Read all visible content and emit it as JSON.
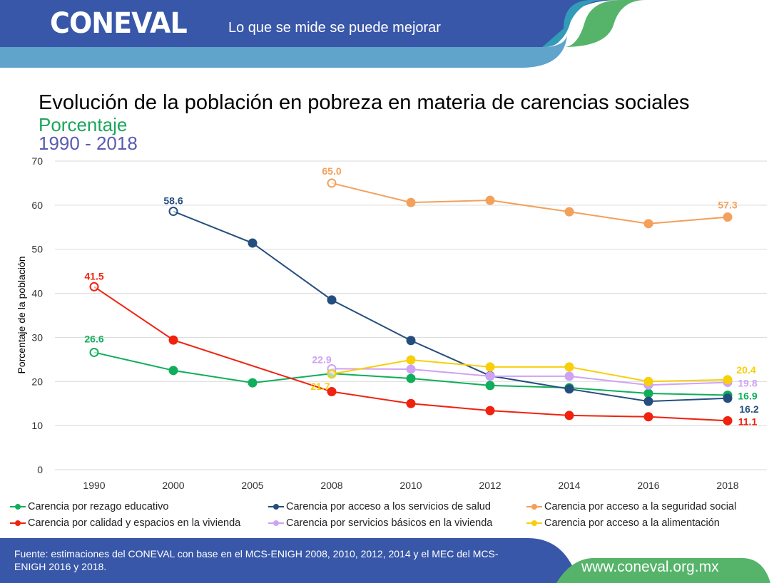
{
  "header": {
    "logo": "CONEVAL",
    "slogan": "Lo que se mide se puede mejorar"
  },
  "title": "Evolución de la población en pobreza en materia de carencias sociales",
  "subtitle": "Porcentaje",
  "period": "1990 - 2018",
  "chart_data": {
    "type": "line",
    "ylabel": "Porcentaje de la población",
    "ylim": [
      0,
      70
    ],
    "yticks": [
      0,
      10,
      20,
      30,
      40,
      50,
      60,
      70
    ],
    "grid": true,
    "legend": "bottom",
    "categories": [
      "1990",
      "2000",
      "2005",
      "2008",
      "2010",
      "2012",
      "2014",
      "2016",
      "2018"
    ],
    "series": [
      {
        "name": "Carencia por rezago educativo",
        "color": "#0fae5a",
        "values": [
          26.6,
          22.5,
          19.7,
          21.8,
          20.7,
          19.1,
          18.6,
          17.3,
          16.9
        ],
        "labels": {
          "0": "26.6",
          "8": "16.9"
        }
      },
      {
        "name": "Carencia por acceso a los servicios de salud",
        "color": "#254e7e",
        "values": [
          null,
          58.6,
          51.4,
          38.5,
          29.3,
          21.3,
          18.3,
          15.5,
          16.2
        ],
        "labels": {
          "1": "58.6",
          "8": "16.2"
        }
      },
      {
        "name": "Carencia por acceso a la seguridad social",
        "color": "#f3a05a",
        "values": [
          null,
          null,
          null,
          65.0,
          60.6,
          61.1,
          58.5,
          55.8,
          57.3
        ],
        "labels": {
          "3": "65.0",
          "8": "57.3"
        }
      },
      {
        "name": "Carencia por calidad y espacios en la vivienda",
        "color": "#f0220f",
        "values": [
          41.5,
          29.4,
          null,
          17.7,
          15.0,
          13.4,
          12.3,
          12.0,
          11.1
        ],
        "labels": {
          "0": "41.5",
          "8": "11.1"
        }
      },
      {
        "name": "Carencia por servicios básicos en la vivienda",
        "color": "#cfa2f3",
        "values": [
          null,
          null,
          null,
          22.9,
          22.8,
          21.2,
          21.2,
          19.2,
          19.8
        ],
        "labels": {
          "3": "22.9",
          "8": "19.8"
        }
      },
      {
        "name": "Carencia por acceso a la alimentación",
        "color": "#f7cf0a",
        "values": [
          null,
          null,
          null,
          21.7,
          24.9,
          23.3,
          23.3,
          20.0,
          20.4
        ],
        "labels": {
          "3": "21.7",
          "8": "20.4"
        }
      }
    ]
  },
  "footer": {
    "source": "Fuente: estimaciones del CONEVAL con base en el MCS-ENIGH 2008, 2010, 2012, 2014 y el MEC del MCS-ENIGH 2016 y 2018.",
    "url": "www.coneval.org.mx"
  }
}
